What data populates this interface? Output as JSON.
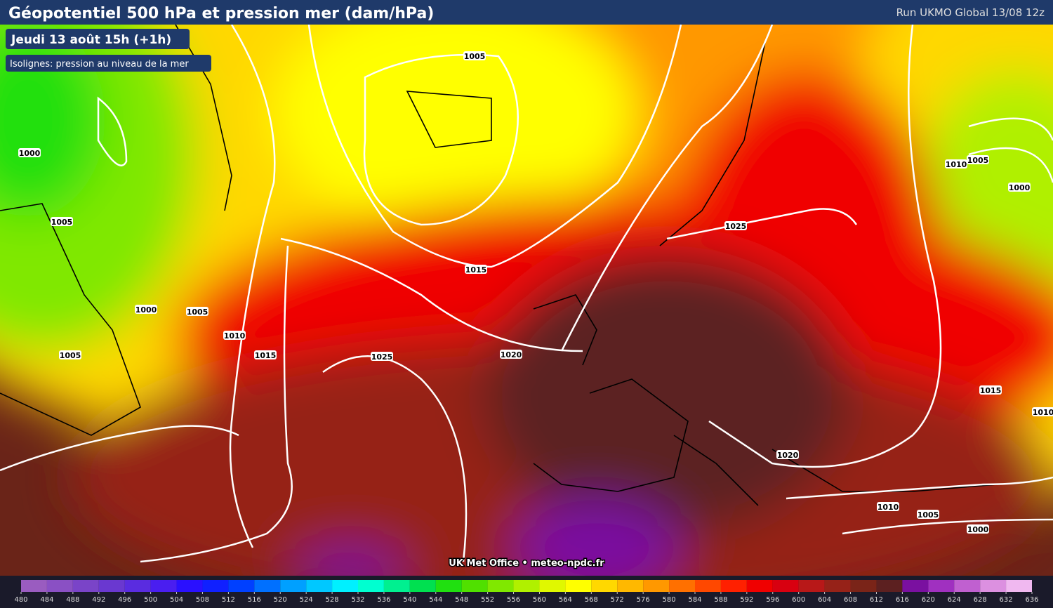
{
  "header": {
    "title": "Géopotentiel 500 hPa et pression mer (dam/hPa)",
    "run": "Run UKMO Global 13/08 12z"
  },
  "badges": {
    "date": "Jeudi 13 août 15h (+1h)",
    "isolines": "Isolignes: pression au niveau de la mer"
  },
  "isobar_labels": [
    "1005",
    "1000",
    "1005",
    "1000",
    "1005",
    "1010",
    "1005",
    "1015",
    "1025",
    "1015",
    "1020",
    "1025",
    "1010",
    "1005",
    "1000",
    "1015",
    "1010",
    "1020",
    "1010",
    "1005",
    "1000"
  ],
  "credit": "UK Met Office • meteo-npdc.fr",
  "colorbar": {
    "ticks": [
      480,
      484,
      488,
      492,
      496,
      500,
      504,
      508,
      512,
      516,
      520,
      524,
      528,
      532,
      536,
      540,
      544,
      548,
      552,
      556,
      560,
      564,
      568,
      572,
      576,
      580,
      584,
      588,
      592,
      596,
      600,
      604,
      608,
      612,
      616,
      620,
      624,
      628,
      632,
      636
    ],
    "colors": [
      "#9a5cc0",
      "#8a50c4",
      "#7a44c8",
      "#6a38d0",
      "#5a2ce0",
      "#4a1ef0",
      "#2a10ff",
      "#1020ff",
      "#0040ff",
      "#0070ff",
      "#00a0ff",
      "#00c8ff",
      "#00f0ff",
      "#00ffd0",
      "#00f090",
      "#00e050",
      "#20e010",
      "#50e000",
      "#80e800",
      "#b0f000",
      "#e0f800",
      "#ffff00",
      "#ffd800",
      "#ffb800",
      "#ff9800",
      "#ff7000",
      "#ff4800",
      "#ff2000",
      "#f00000",
      "#d80010",
      "#b81818",
      "#962218",
      "#7a2418",
      "#5c2020",
      "#7a10a0",
      "#a030c0",
      "#c060d0",
      "#dc90e0",
      "#f0b8f0"
    ]
  }
}
